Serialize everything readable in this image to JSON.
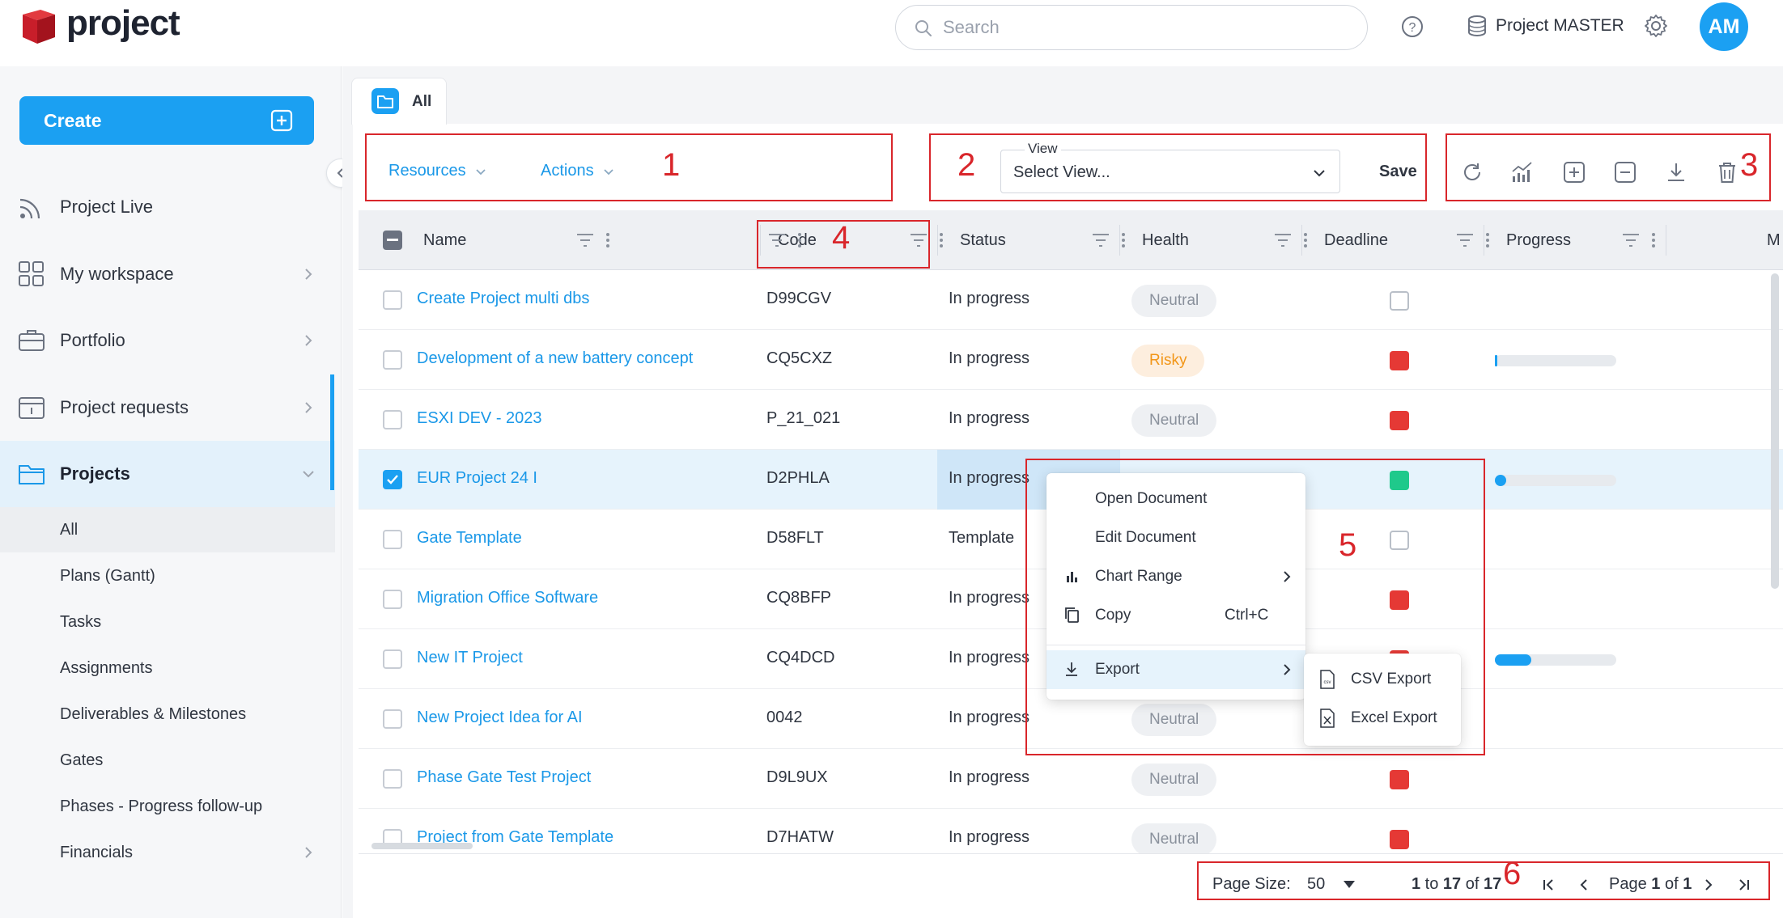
{
  "app": {
    "logo_text": "project"
  },
  "header": {
    "search_placeholder": "Search",
    "workspace_label": "Project MASTER",
    "avatar_initials": "AM"
  },
  "sidebar": {
    "create_label": "Create",
    "items": [
      {
        "label": "Project Live",
        "icon": "rss-icon"
      },
      {
        "label": "My workspace",
        "icon": "grid-icon"
      },
      {
        "label": "Portfolio",
        "icon": "briefcase-icon"
      },
      {
        "label": "Project requests",
        "icon": "request-icon"
      },
      {
        "label": "Projects",
        "icon": "folder-icon"
      }
    ],
    "sub_items": [
      {
        "label": "All"
      },
      {
        "label": "Plans (Gantt)"
      },
      {
        "label": "Tasks"
      },
      {
        "label": "Assignments"
      },
      {
        "label": "Deliverables & Milestones"
      },
      {
        "label": "Gates"
      },
      {
        "label": "Phases - Progress follow-up"
      },
      {
        "label": "Financials"
      }
    ]
  },
  "tab": {
    "label": "All"
  },
  "toolbar": {
    "resources_label": "Resources",
    "actions_label": "Actions",
    "view_label": "View",
    "view_value": "Select View...",
    "save_label": "Save"
  },
  "annotations": {
    "a1": "1",
    "a2": "2",
    "a3": "3",
    "a4": "4",
    "a5": "5",
    "a6": "6"
  },
  "grid": {
    "columns": [
      "Name",
      "Code",
      "Status",
      "Health",
      "Deadline",
      "Progress",
      "M"
    ],
    "rows": [
      {
        "name": "Create Project multi dbs",
        "code": "D99CGV",
        "status": "In progress",
        "health": "Neutral",
        "deadline": "empty",
        "progress": null,
        "selected": false
      },
      {
        "name": "Development of a new battery concept",
        "code": "CQ5CXZ",
        "status": "In progress",
        "health": "Risky",
        "deadline": "red",
        "progress": 0.02,
        "selected": false
      },
      {
        "name": "ESXI DEV - 2023",
        "code": "P_21_021",
        "status": "In progress",
        "health": "Neutral",
        "deadline": "red",
        "progress": null,
        "selected": false
      },
      {
        "name": "EUR Project 24 I",
        "code": "D2PHLA",
        "status": "In progress",
        "health": "",
        "deadline": "green",
        "progress": 0.06,
        "selected": true
      },
      {
        "name": "Gate Template",
        "code": "D58FLT",
        "status": "Template",
        "health": "",
        "deadline": "empty",
        "progress": null,
        "selected": false
      },
      {
        "name": "Migration Office Software",
        "code": "CQ8BFP",
        "status": "In progress",
        "health": "",
        "deadline": "red",
        "progress": null,
        "selected": false
      },
      {
        "name": "New IT Project",
        "code": "CQ4DCD",
        "status": "In progress",
        "health": "",
        "deadline": "red",
        "progress": 0.3,
        "selected": false
      },
      {
        "name": "New Project Idea for AI",
        "code": "0042",
        "status": "In progress",
        "health": "Neutral",
        "deadline": "none",
        "progress": null,
        "selected": false
      },
      {
        "name": "Phase Gate Test Project",
        "code": "D9L9UX",
        "status": "In progress",
        "health": "Neutral",
        "deadline": "red",
        "progress": null,
        "selected": false
      },
      {
        "name": "Project from Gate Template",
        "code": "D7HATW",
        "status": "In progress",
        "health": "Neutral",
        "deadline": "red",
        "progress": null,
        "selected": false
      }
    ]
  },
  "context_menu": {
    "items": [
      {
        "label": "Open Document",
        "shortcut": ""
      },
      {
        "label": "Edit Document",
        "shortcut": ""
      },
      {
        "label": "Chart Range",
        "shortcut": ""
      },
      {
        "label": "Copy",
        "shortcut": "Ctrl+C"
      },
      {
        "label": "Export",
        "shortcut": ""
      }
    ],
    "submenu": [
      {
        "label": "CSV Export"
      },
      {
        "label": "Excel Export"
      }
    ]
  },
  "pagination": {
    "page_size_label": "Page Size:",
    "page_size": "50",
    "range_from": "1",
    "range_to": "17",
    "range_total": "17",
    "page_current": "1",
    "page_total": "1",
    "to_word": " to ",
    "of_word": " of ",
    "page_word": "Page "
  },
  "colors": {
    "accent": "#1ba0f2",
    "deadline_red": "#e53935",
    "deadline_green": "#1fc98b",
    "annotation_red": "#d9262b"
  }
}
